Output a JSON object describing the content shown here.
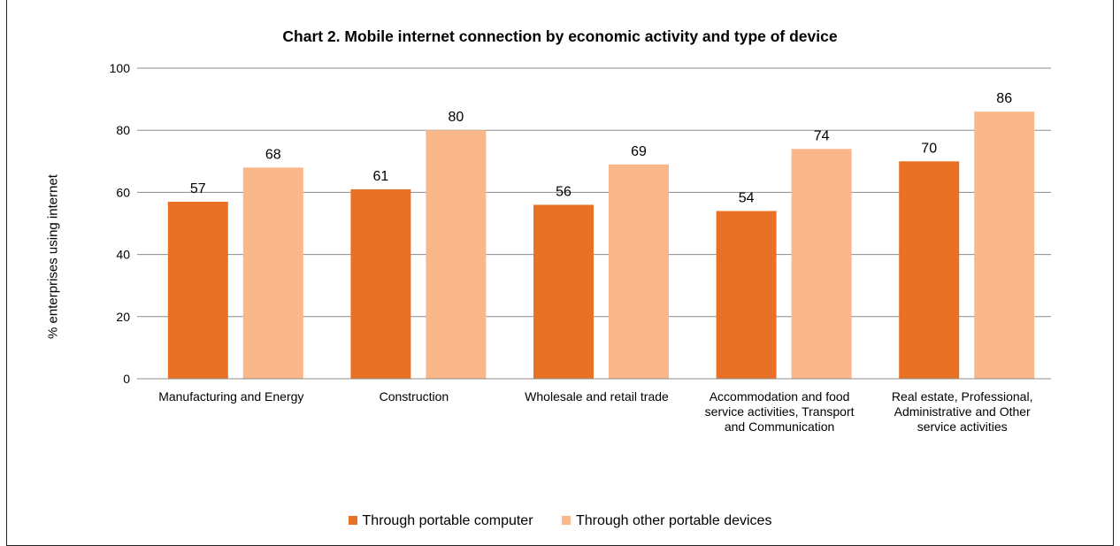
{
  "chart_data": {
    "type": "bar",
    "title": "Chart 2.  Mobile internet connection by economic activity and type of device",
    "ylabel": "% enterprises using internet",
    "xlabel": "",
    "ylim": [
      0,
      100
    ],
    "yticks": [
      0,
      20,
      40,
      60,
      80,
      100
    ],
    "grid": true,
    "legend_position": "bottom",
    "categories": [
      [
        "Manufacturing and Energy"
      ],
      [
        "Construction"
      ],
      [
        "Wholesale and retail trade"
      ],
      [
        "Accommodation and food",
        "service activities, Transport",
        "and Communication"
      ],
      [
        "Real estate, Professional,",
        "Administrative and Other",
        "service activities"
      ]
    ],
    "series": [
      {
        "name": "Through portable computer",
        "color": "#e87125",
        "values": [
          57,
          61,
          56,
          54,
          70
        ]
      },
      {
        "name": "Through other portable devices",
        "color": "#fab88a",
        "values": [
          68,
          80,
          69,
          74,
          86
        ]
      }
    ]
  }
}
